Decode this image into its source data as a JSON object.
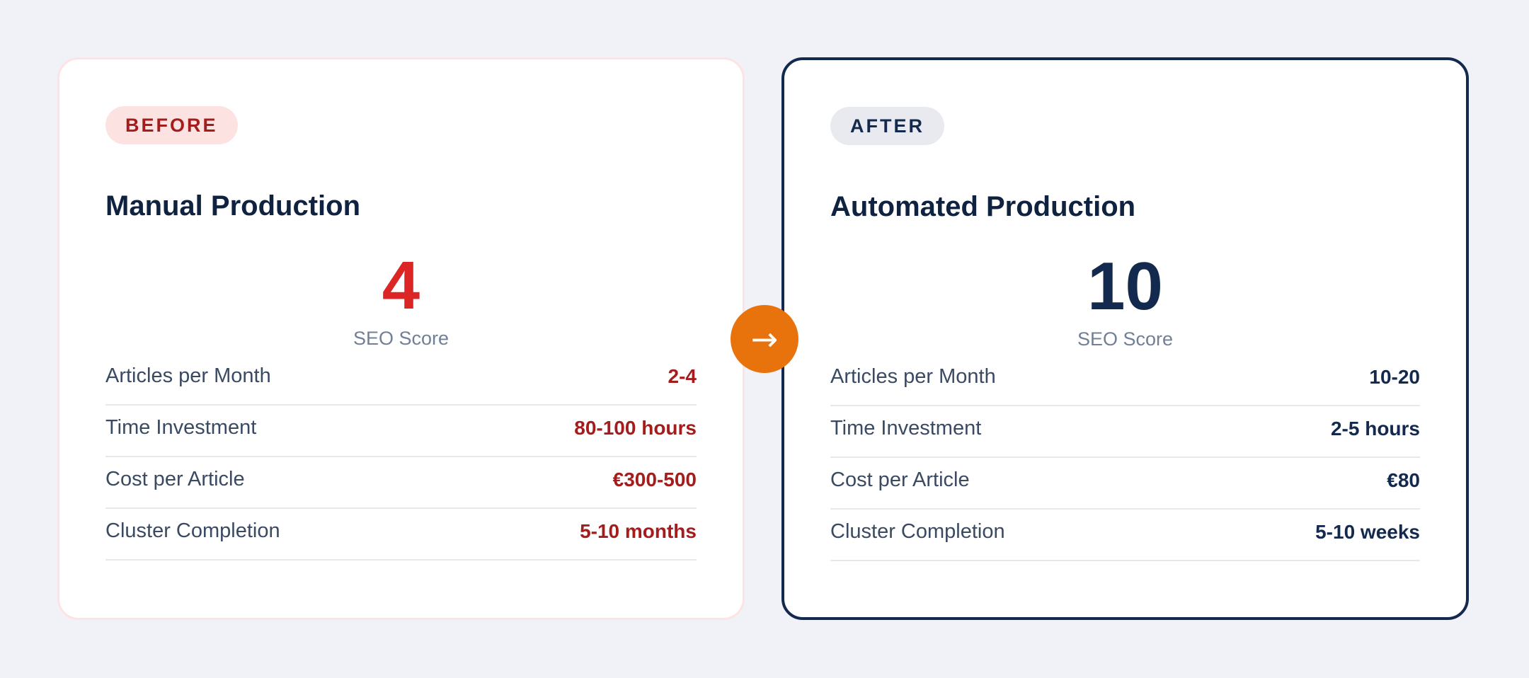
{
  "colors": {
    "page_background": "#f0f2f7",
    "before_accent": "#dc2626",
    "before_value": "#a51c1c",
    "after_accent": "#132a4e",
    "arrow_button": "#e8720c"
  },
  "before": {
    "badge": "BEFORE",
    "title": "Manual Production",
    "score": "4",
    "score_label": "SEO Score",
    "metrics": [
      {
        "label": "Articles per Month",
        "value": "2-4"
      },
      {
        "label": "Time Investment",
        "value": "80-100 hours"
      },
      {
        "label": "Cost per Article",
        "value": "€300-500"
      },
      {
        "label": "Cluster Completion",
        "value": "5-10 months"
      }
    ]
  },
  "arrow": {
    "icon": "arrow-right-icon",
    "glyph": "→"
  },
  "after": {
    "badge": "AFTER",
    "title": "Automated Production",
    "score": "10",
    "score_label": "SEO Score",
    "metrics": [
      {
        "label": "Articles per Month",
        "value": "10-20"
      },
      {
        "label": "Time Investment",
        "value": "2-5 hours"
      },
      {
        "label": "Cost per Article",
        "value": "€80"
      },
      {
        "label": "Cluster Completion",
        "value": "5-10 weeks"
      }
    ]
  }
}
